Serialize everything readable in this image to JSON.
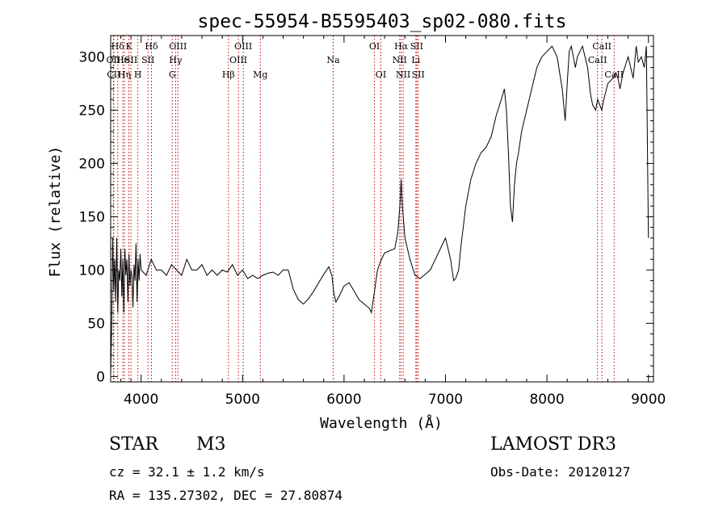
{
  "chart_data": {
    "type": "line",
    "title": "spec-55954-B5595403_sp02-080.fits",
    "xlabel": "Wavelength (Å)",
    "ylabel": "Flux (relative)",
    "xlim": [
      3700,
      9050
    ],
    "ylim": [
      -5,
      320
    ],
    "x_ticks": [
      4000,
      5000,
      6000,
      7000,
      8000,
      9000
    ],
    "y_ticks": [
      0,
      50,
      100,
      150,
      200,
      250,
      300
    ],
    "grid": false,
    "series": [
      {
        "name": "flux",
        "x": [
          3700,
          3710,
          3720,
          3730,
          3740,
          3750,
          3760,
          3770,
          3780,
          3790,
          3800,
          3810,
          3820,
          3830,
          3840,
          3850,
          3860,
          3870,
          3880,
          3890,
          3900,
          3910,
          3920,
          3930,
          3940,
          3950,
          3960,
          3970,
          3980,
          3990,
          4000,
          4050,
          4100,
          4150,
          4200,
          4250,
          4300,
          4350,
          4400,
          4450,
          4500,
          4550,
          4600,
          4650,
          4700,
          4750,
          4800,
          4850,
          4900,
          4950,
          5000,
          5050,
          5100,
          5150,
          5200,
          5250,
          5300,
          5350,
          5400,
          5450,
          5500,
          5550,
          5600,
          5650,
          5700,
          5750,
          5800,
          5850,
          5880,
          5900,
          5920,
          5950,
          6000,
          6050,
          6100,
          6150,
          6200,
          6250,
          6270,
          6300,
          6330,
          6360,
          6400,
          6450,
          6500,
          6530,
          6550,
          6563,
          6575,
          6600,
          6650,
          6700,
          6750,
          6800,
          6850,
          6900,
          6950,
          7000,
          7050,
          7080,
          7100,
          7130,
          7150,
          7200,
          7250,
          7300,
          7350,
          7400,
          7450,
          7500,
          7550,
          7580,
          7600,
          7620,
          7640,
          7660,
          7680,
          7700,
          7720,
          7750,
          7800,
          7850,
          7900,
          7950,
          8000,
          8050,
          8100,
          8150,
          8180,
          8200,
          8220,
          8240,
          8250,
          8280,
          8300,
          8350,
          8400,
          8430,
          8450,
          8480,
          8500,
          8520,
          8540,
          8560,
          8600,
          8650,
          8680,
          8700,
          8720,
          8750,
          8800,
          8850,
          8880,
          8900,
          8930,
          8960,
          8980,
          9000
        ],
        "values": [
          1,
          50,
          130,
          80,
          110,
          70,
          130,
          60,
          100,
          90,
          120,
          75,
          110,
          60,
          120,
          95,
          110,
          70,
          115,
          85,
          100,
          95,
          65,
          105,
          90,
          125,
          70,
          110,
          90,
          115,
          100,
          95,
          110,
          100,
          100,
          95,
          105,
          100,
          95,
          110,
          100,
          100,
          105,
          95,
          100,
          95,
          100,
          98,
          105,
          95,
          100,
          92,
          95,
          92,
          95,
          97,
          98,
          95,
          100,
          100,
          82,
          72,
          68,
          73,
          80,
          88,
          96,
          103,
          95,
          78,
          70,
          75,
          85,
          88,
          80,
          72,
          68,
          64,
          60,
          80,
          100,
          108,
          116,
          118,
          120,
          135,
          160,
          185,
          160,
          130,
          110,
          95,
          92,
          96,
          100,
          110,
          120,
          130,
          110,
          90,
          92,
          100,
          120,
          160,
          185,
          200,
          210,
          215,
          225,
          245,
          260,
          270,
          250,
          210,
          160,
          145,
          180,
          200,
          210,
          230,
          250,
          270,
          290,
          300,
          305,
          310,
          300,
          270,
          240,
          275,
          305,
          310,
          305,
          290,
          300,
          310,
          290,
          265,
          255,
          250,
          260,
          255,
          250,
          260,
          275,
          280,
          285,
          280,
          270,
          285,
          300,
          280,
          310,
          295,
          300,
          290,
          310,
          130
        ]
      }
    ],
    "line_markers": [
      {
        "name": "Hδ",
        "x": 3770,
        "row": 1
      },
      {
        "name": "OII",
        "x": 3727,
        "row": 2
      },
      {
        "name": "CII",
        "x": 3731,
        "row": 3
      },
      {
        "name": "He",
        "x": 3820,
        "row": 2
      },
      {
        "name": "Hη",
        "x": 3835,
        "row": 3
      },
      {
        "name": "K",
        "x": 3880,
        "row": 1
      },
      {
        "name": "SII",
        "x": 3900,
        "row": 2
      },
      {
        "name": "H",
        "x": 3968,
        "row": 3
      },
      {
        "name": "Hδ",
        "x": 4102,
        "row": 1
      },
      {
        "name": "SII",
        "x": 4068,
        "row": 2
      },
      {
        "name": "OIII",
        "x": 4363,
        "row": 1
      },
      {
        "name": "Hγ",
        "x": 4340,
        "row": 2
      },
      {
        "name": "G",
        "x": 4307,
        "row": 3
      },
      {
        "name": "Hβ",
        "x": 4861,
        "row": 3
      },
      {
        "name": "OIII",
        "x": 5007,
        "row": 1
      },
      {
        "name": "OIII",
        "x": 4959,
        "row": 2
      },
      {
        "name": "Mg",
        "x": 5175,
        "row": 3
      },
      {
        "name": "Na",
        "x": 5893,
        "row": 2
      },
      {
        "name": "OI",
        "x": 6300,
        "row": 1
      },
      {
        "name": "OI",
        "x": 6363,
        "row": 3
      },
      {
        "name": "Hα",
        "x": 6563,
        "row": 1
      },
      {
        "name": "SII",
        "x": 6716,
        "row": 1
      },
      {
        "name": "NII",
        "x": 6548,
        "row": 2
      },
      {
        "name": "Li",
        "x": 6708,
        "row": 2
      },
      {
        "name": "NII",
        "x": 6583,
        "row": 3
      },
      {
        "name": "SII",
        "x": 6731,
        "row": 3
      },
      {
        "name": "CaII",
        "x": 8542,
        "row": 1
      },
      {
        "name": "CaII",
        "x": 8498,
        "row": 2
      },
      {
        "name": "CaII",
        "x": 8662,
        "row": 3
      }
    ]
  },
  "info": {
    "object_type": "STAR",
    "subclass": "M3",
    "survey": "LAMOST DR3",
    "cz": "cz = 32.1 ± 1.2 km/s",
    "obs_date": "Obs-Date: 20120127",
    "coords": "RA = 135.27302, DEC =  27.80874"
  }
}
